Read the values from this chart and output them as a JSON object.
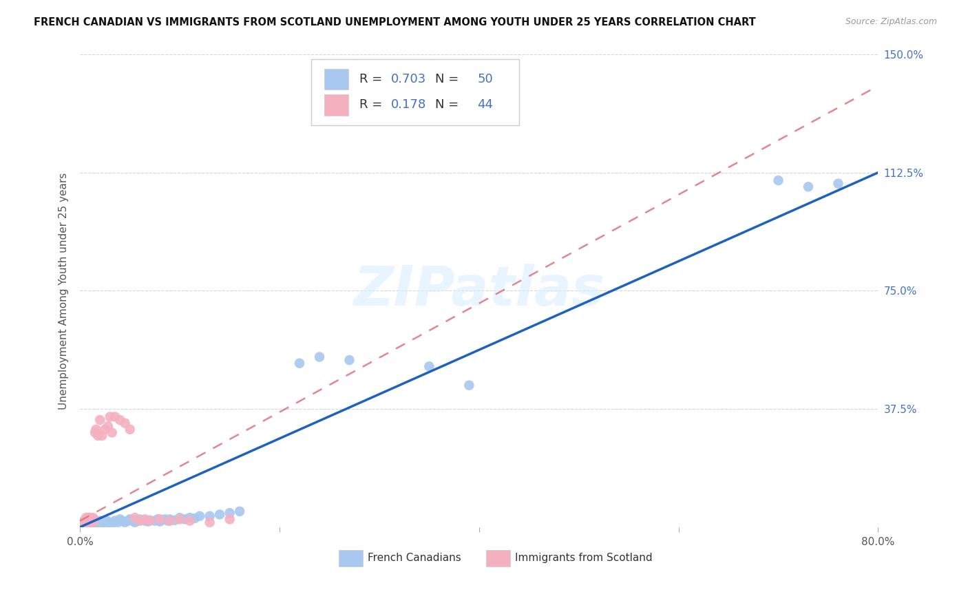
{
  "title": "FRENCH CANADIAN VS IMMIGRANTS FROM SCOTLAND UNEMPLOYMENT AMONG YOUTH UNDER 25 YEARS CORRELATION CHART",
  "source": "Source: ZipAtlas.com",
  "ylabel": "Unemployment Among Youth under 25 years",
  "xlim": [
    0.0,
    0.8
  ],
  "ylim": [
    0.0,
    1.5
  ],
  "ytick_positions": [
    0.375,
    0.75,
    1.125,
    1.5
  ],
  "ytick_labels": [
    "37.5%",
    "75.0%",
    "112.5%",
    "150.0%"
  ],
  "blue_R": "0.703",
  "blue_N": "50",
  "pink_R": "0.178",
  "pink_N": "44",
  "blue_color": "#a8c8f0",
  "pink_color": "#f5b0c0",
  "blue_line_color": "#2060c0",
  "pink_line_color": "#e07080",
  "legend_label_blue": "French Canadians",
  "legend_label_pink": "Immigrants from Scotland",
  "background_color": "#ffffff",
  "grid_color": "#cccccc",
  "blue_scatter_x": [
    0.005,
    0.008,
    0.01,
    0.012,
    0.015,
    0.018,
    0.02,
    0.022,
    0.025,
    0.027,
    0.03,
    0.032,
    0.035,
    0.038,
    0.04,
    0.042,
    0.045,
    0.048,
    0.05,
    0.053,
    0.055,
    0.058,
    0.06,
    0.065,
    0.068,
    0.07,
    0.075,
    0.078,
    0.08,
    0.085,
    0.088,
    0.09,
    0.095,
    0.1,
    0.105,
    0.11,
    0.115,
    0.12,
    0.13,
    0.14,
    0.15,
    0.16,
    0.22,
    0.24,
    0.27,
    0.35,
    0.39,
    0.7,
    0.73,
    0.76
  ],
  "blue_scatter_y": [
    0.01,
    0.015,
    0.012,
    0.018,
    0.01,
    0.015,
    0.02,
    0.015,
    0.01,
    0.02,
    0.015,
    0.01,
    0.02,
    0.015,
    0.025,
    0.02,
    0.015,
    0.02,
    0.025,
    0.02,
    0.015,
    0.02,
    0.025,
    0.02,
    0.018,
    0.022,
    0.02,
    0.025,
    0.018,
    0.025,
    0.02,
    0.025,
    0.022,
    0.03,
    0.025,
    0.03,
    0.028,
    0.035,
    0.035,
    0.04,
    0.045,
    0.05,
    0.52,
    0.54,
    0.53,
    0.51,
    0.45,
    1.1,
    1.08,
    1.09
  ],
  "pink_scatter_x": [
    0.002,
    0.003,
    0.004,
    0.005,
    0.006,
    0.006,
    0.007,
    0.007,
    0.008,
    0.008,
    0.009,
    0.009,
    0.01,
    0.01,
    0.011,
    0.011,
    0.012,
    0.012,
    0.013,
    0.013,
    0.014,
    0.015,
    0.016,
    0.018,
    0.02,
    0.022,
    0.025,
    0.028,
    0.03,
    0.032,
    0.035,
    0.04,
    0.045,
    0.05,
    0.055,
    0.06,
    0.065,
    0.07,
    0.08,
    0.09,
    0.1,
    0.11,
    0.13,
    0.15
  ],
  "pink_scatter_y": [
    0.015,
    0.01,
    0.02,
    0.015,
    0.02,
    0.03,
    0.015,
    0.025,
    0.02,
    0.03,
    0.015,
    0.025,
    0.02,
    0.03,
    0.015,
    0.025,
    0.02,
    0.025,
    0.03,
    0.015,
    0.025,
    0.3,
    0.31,
    0.29,
    0.34,
    0.29,
    0.31,
    0.32,
    0.35,
    0.3,
    0.35,
    0.34,
    0.33,
    0.31,
    0.03,
    0.02,
    0.025,
    0.02,
    0.025,
    0.02,
    0.025,
    0.02,
    0.015,
    0.025
  ],
  "blue_line_x": [
    0.0,
    0.8
  ],
  "blue_line_y": [
    0.0,
    1.125
  ],
  "pink_line_x": [
    0.0,
    0.8
  ],
  "pink_line_y": [
    0.02,
    1.4
  ],
  "watermark": "ZIPatlas",
  "marker_size": 110
}
